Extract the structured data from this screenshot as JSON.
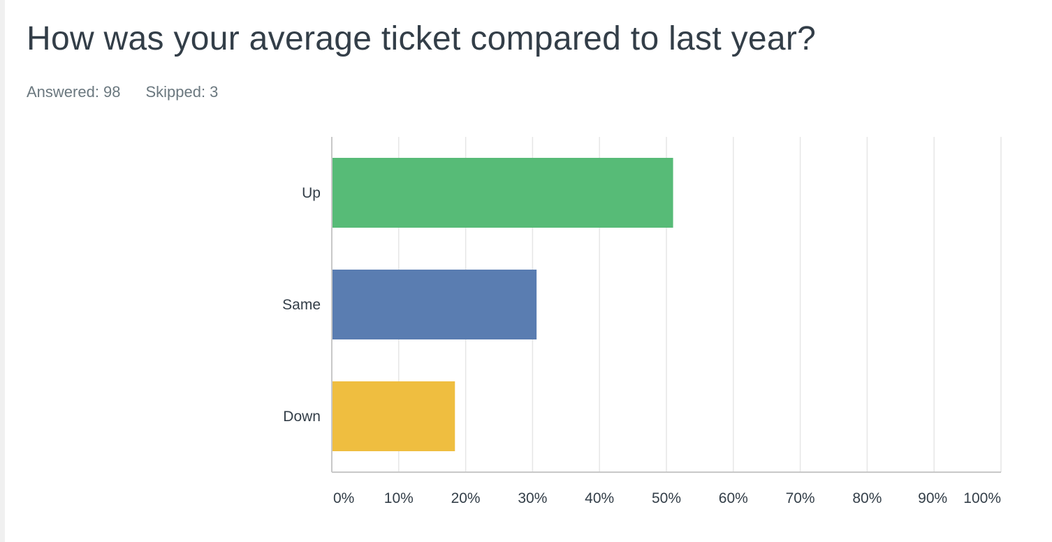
{
  "question": {
    "title": "How was your average ticket compared to last year?",
    "answered_label": "Answered:",
    "answered_value": "98",
    "skipped_label": "Skipped:",
    "skipped_value": "3"
  },
  "chart_data": {
    "type": "bar",
    "orientation": "horizontal",
    "categories": [
      "Up",
      "Same",
      "Down"
    ],
    "values": [
      51,
      30.6,
      18.4
    ],
    "colors": [
      "#57bb77",
      "#5a7db1",
      "#efbe40"
    ],
    "xlim": [
      0,
      100
    ],
    "x_ticks": [
      "0%",
      "10%",
      "20%",
      "30%",
      "40%",
      "50%",
      "60%",
      "70%",
      "80%",
      "90%",
      "100%"
    ],
    "grid": "vertical",
    "title": "",
    "xlabel": "",
    "ylabel": ""
  }
}
